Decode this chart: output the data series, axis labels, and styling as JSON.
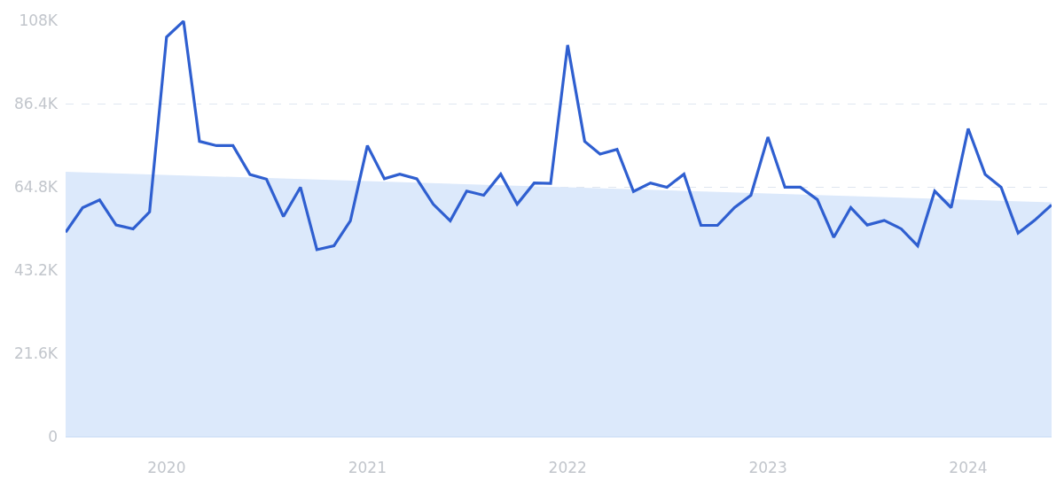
{
  "chart_data": {
    "type": "line",
    "x": [
      "2019-07",
      "2019-08",
      "2019-09",
      "2019-10",
      "2019-11",
      "2019-12",
      "2020-01",
      "2020-02",
      "2020-03",
      "2020-04",
      "2020-05",
      "2020-06",
      "2020-07",
      "2020-08",
      "2020-09",
      "2020-10",
      "2020-11",
      "2020-12",
      "2021-01",
      "2021-02",
      "2021-03",
      "2021-04",
      "2021-05",
      "2021-06",
      "2021-07",
      "2021-08",
      "2021-09",
      "2021-10",
      "2021-11",
      "2021-12",
      "2022-01",
      "2022-02",
      "2022-03",
      "2022-04",
      "2022-05",
      "2022-06",
      "2022-07",
      "2022-08",
      "2022-09",
      "2022-10",
      "2022-11",
      "2022-12",
      "2023-01",
      "2023-02",
      "2023-03",
      "2023-04",
      "2023-05",
      "2023-06",
      "2023-07",
      "2023-08",
      "2023-09",
      "2023-10",
      "2023-11",
      "2023-12",
      "2024-01",
      "2024-02",
      "2024-03",
      "2024-04",
      "2024-05",
      "2024-06"
    ],
    "series": [
      {
        "type": "area",
        "color": "#dce9fb",
        "x": [
          "2019-07",
          "2024-06"
        ],
        "values": [
          68700,
          60800
        ]
      },
      {
        "color": "#2f5fd0",
        "values": [
          53000,
          59400,
          61400,
          54900,
          53900,
          58300,
          103700,
          107800,
          76600,
          75500,
          75500,
          68000,
          66800,
          57100,
          64700,
          48500,
          49500,
          56000,
          75500,
          66900,
          68100,
          66900,
          60300,
          56000,
          63700,
          62600,
          68100,
          60300,
          65800,
          65700,
          101600,
          76600,
          73300,
          74500,
          63600,
          65800,
          64700,
          68100,
          54800,
          54800,
          59400,
          62600,
          77700,
          64700,
          64700,
          61500,
          51700,
          59400,
          54900,
          56100,
          53900,
          49500,
          63700,
          59400,
          79900,
          68000,
          64700,
          52800,
          56100,
          60100
        ]
      }
    ],
    "xlim": [
      "2019-07",
      "2024-06"
    ],
    "xticks": [
      "2020",
      "2021",
      "2022",
      "2023",
      "2024"
    ],
    "ylim": [
      0,
      108000
    ],
    "yticks": [
      {
        "value": 0,
        "label": "0"
      },
      {
        "value": 21600,
        "label": "21.6K"
      },
      {
        "value": 43200,
        "label": "43.2K"
      },
      {
        "value": 64800,
        "label": "64.8K"
      },
      {
        "value": 86400,
        "label": "86.4K"
      },
      {
        "value": 108000,
        "label": "108K"
      }
    ],
    "grid": "y",
    "marker": "none",
    "line_style": "solid"
  }
}
